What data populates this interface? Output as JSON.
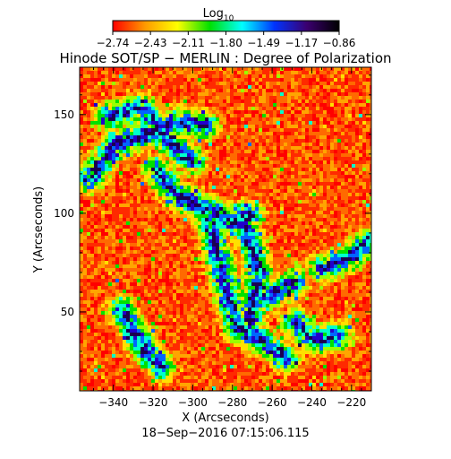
{
  "title": "Hinode SOT/SP − MERLIN : Degree of Polarization",
  "colorbar": {
    "label": "Log",
    "label_sub": "10",
    "ticks": [
      "−2.74",
      "−2.43",
      "−2.11",
      "−1.80",
      "−1.49",
      "−1.17",
      "−0.86"
    ],
    "colors": [
      "#ff0000",
      "#ff9a00",
      "#ffff00",
      "#00e000",
      "#00ffff",
      "#0033ff",
      "#3b006f",
      "#000000"
    ]
  },
  "x_axis": {
    "label": "X (Arcseconds)",
    "range": [
      -357,
      -210
    ],
    "ticks": [
      -340,
      -320,
      -300,
      -280,
      -260,
      -240,
      -220
    ],
    "tick_labels": [
      "−340",
      "−320",
      "−300",
      "−280",
      "−260",
      "−240",
      "−220"
    ]
  },
  "y_axis": {
    "label": "Y (Arcseconds)",
    "range": [
      10,
      174
    ],
    "ticks": [
      50,
      100,
      150
    ],
    "tick_labels": [
      "50",
      "100",
      "150"
    ]
  },
  "timestamp": "18−Sep−2016 07:15:06.115"
}
